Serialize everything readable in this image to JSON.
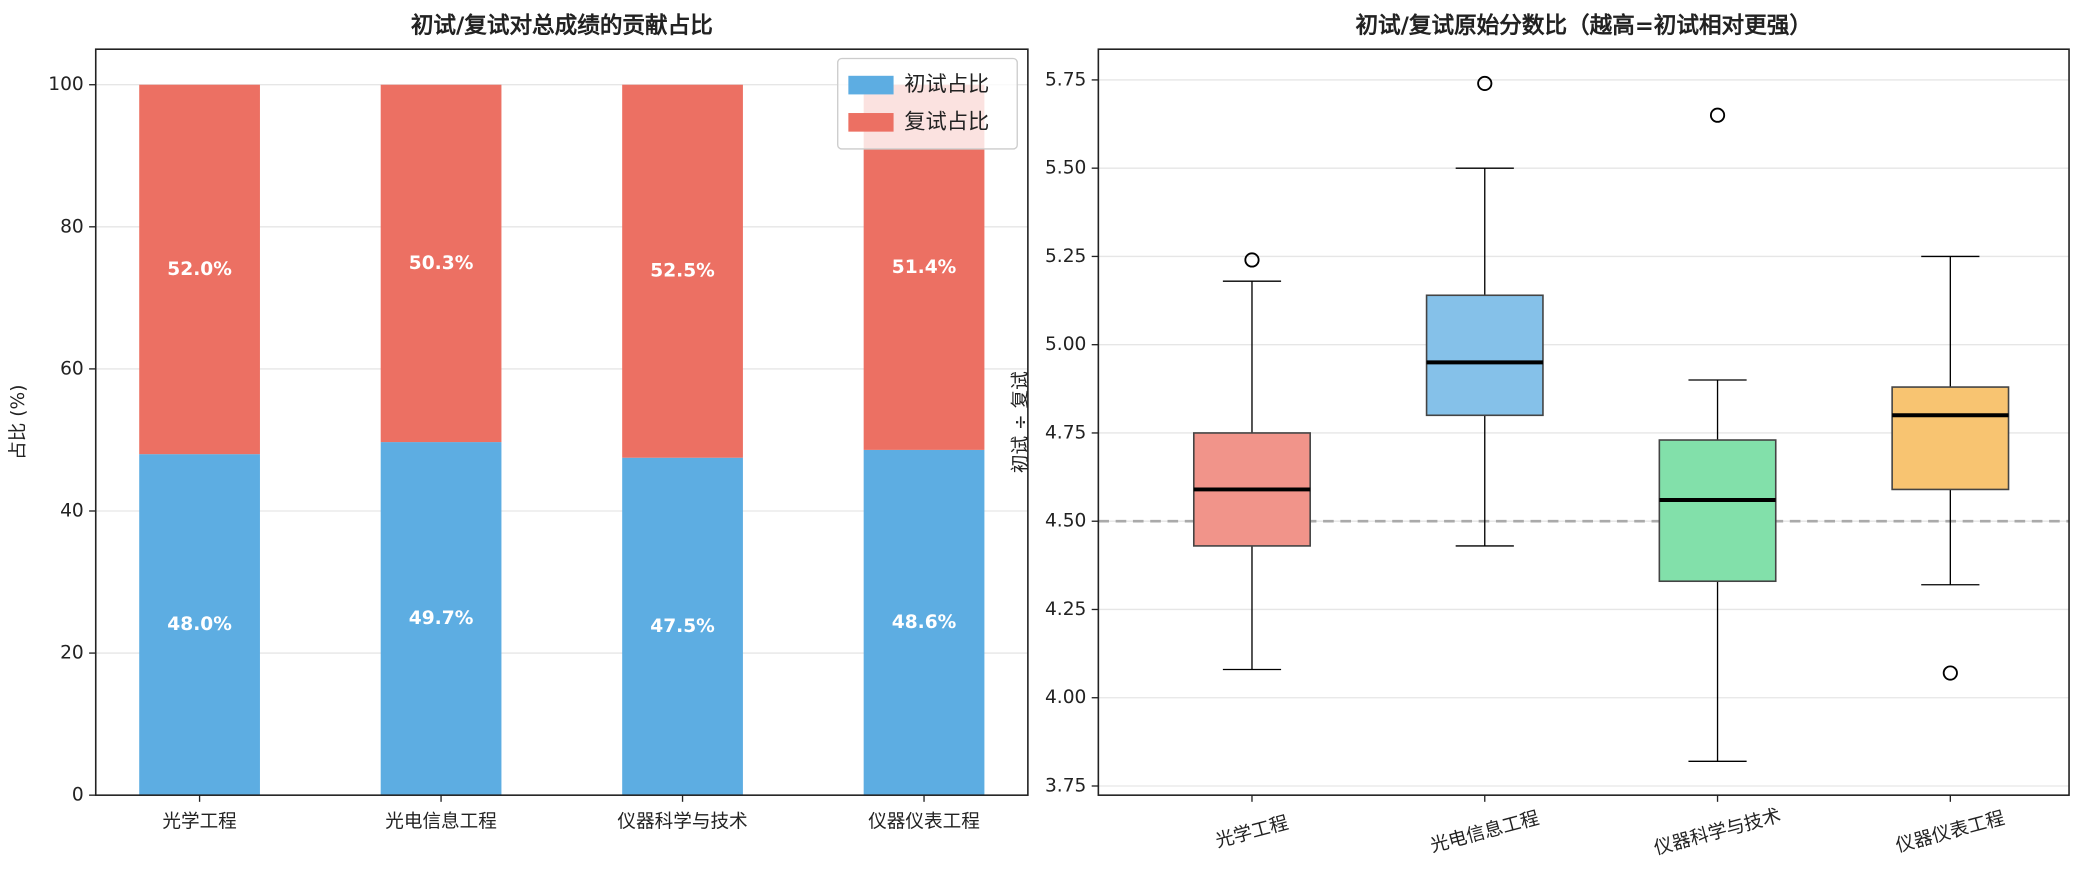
{
  "chart_data": [
    {
      "type": "stacked_bar",
      "title": "初试/复试对总成绩的贡献占比",
      "ylabel": "占比 (%)",
      "categories": [
        "光学工程",
        "光电信息工程",
        "仪器科学与技术",
        "仪器仪表工程"
      ],
      "series": [
        {
          "name": "初试占比",
          "color": "#5dade2",
          "values": [
            48.0,
            49.7,
            47.5,
            48.6
          ],
          "value_labels": [
            "48.0%",
            "49.7%",
            "47.5%",
            "48.6%"
          ]
        },
        {
          "name": "复试占比",
          "color": "#ec7063",
          "values": [
            52.0,
            50.3,
            52.5,
            51.4
          ],
          "value_labels": [
            "52.0%",
            "50.3%",
            "52.5%",
            "51.4%"
          ]
        }
      ],
      "ylim": [
        0,
        105
      ],
      "yticks": [
        0,
        20,
        40,
        60,
        80,
        100
      ],
      "grid": true,
      "legend": "upper right"
    },
    {
      "type": "box",
      "title": "初试/复试原始分数比（越高=初试相对更强）",
      "ylabel": "初试 ÷ 复试",
      "categories": [
        "光学工程",
        "光电信息工程",
        "仪器科学与技术",
        "仪器仪表工程"
      ],
      "colors": [
        "#f1948a",
        "#85c1e9",
        "#82e0aa",
        "#f8c471"
      ],
      "boxes": [
        {
          "whislo": 4.08,
          "q1": 4.43,
          "med": 4.59,
          "q3": 4.75,
          "whishi": 5.18,
          "fliers": [
            5.24
          ]
        },
        {
          "whislo": 4.43,
          "q1": 4.8,
          "med": 4.95,
          "q3": 5.14,
          "whishi": 5.5,
          "fliers": [
            5.74
          ]
        },
        {
          "whislo": 3.82,
          "q1": 4.33,
          "med": 4.56,
          "q3": 4.73,
          "whishi": 4.9,
          "fliers": [
            5.65
          ]
        },
        {
          "whislo": 4.32,
          "q1": 4.59,
          "med": 4.8,
          "q3": 4.88,
          "whishi": 5.25,
          "fliers": [
            4.07
          ]
        }
      ],
      "reference_line": 4.5,
      "ylim": [
        3.724,
        5.837
      ],
      "yticks": [
        3.75,
        {
          "value": 4,
          "label": "4.00"
        },
        4.25,
        {
          "value": 4.5,
          "label": "4.50"
        },
        4.75,
        {
          "value": 5,
          "label": "5.00"
        },
        5.25,
        {
          "value": 5.5,
          "label": "5.50"
        },
        5.75
      ],
      "grid": true
    }
  ]
}
